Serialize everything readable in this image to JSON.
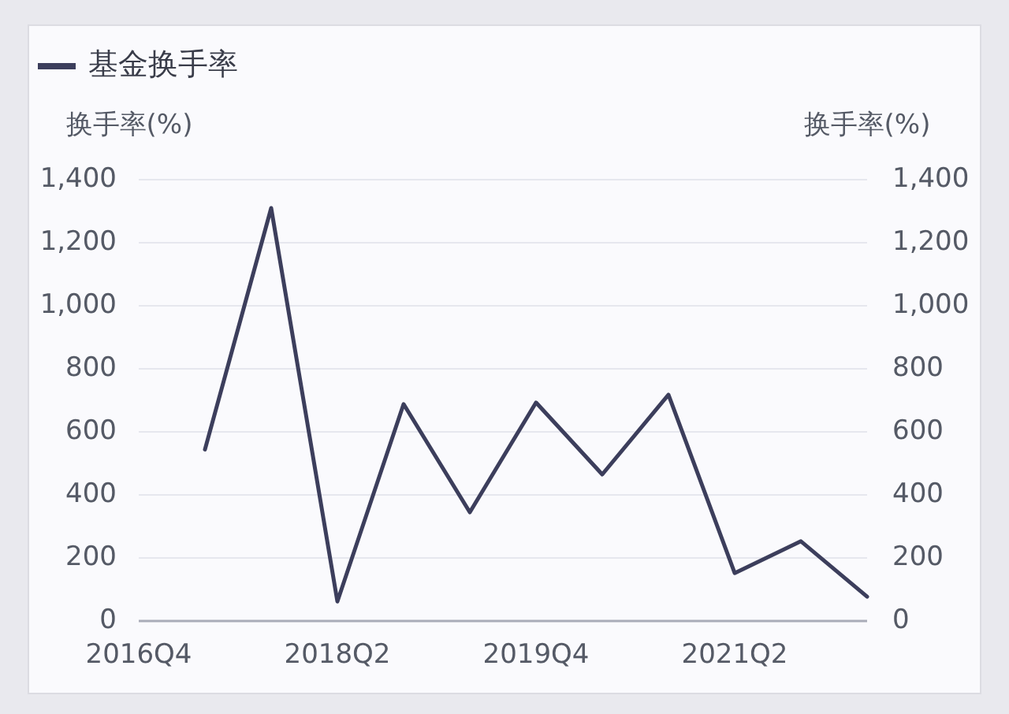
{
  "chart_data": {
    "type": "line",
    "categories": [
      "2016Q4",
      null,
      null,
      "2018Q2",
      null,
      null,
      "2019Q4",
      null,
      null,
      "2021Q2",
      null,
      null
    ],
    "series": [
      {
        "name": "基金换手率",
        "color": "#3c3e5c",
        "values": [
          null,
          544,
          1310,
          62,
          688,
          345,
          693,
          465,
          718,
          152,
          253,
          77
        ]
      }
    ],
    "ylabel": "换手率(%)",
    "y2label": "换手率(%)",
    "ylim": [
      0,
      1400
    ],
    "yticks": [
      {
        "value": 0,
        "label": "0"
      },
      {
        "value": 200,
        "label": "200"
      },
      {
        "value": 400,
        "label": "400"
      },
      {
        "value": 600,
        "label": "600"
      },
      {
        "value": 800,
        "label": "800"
      },
      {
        "value": 1000,
        "label": "1,000"
      },
      {
        "value": 1200,
        "label": "1,200"
      },
      {
        "value": 1400,
        "label": "1,400"
      }
    ],
    "y2lim": [
      0,
      1400
    ],
    "y2ticks": [
      {
        "value": 0,
        "label": "0"
      },
      {
        "value": 200,
        "label": "200"
      },
      {
        "value": 400,
        "label": "400"
      },
      {
        "value": 600,
        "label": "600"
      },
      {
        "value": 800,
        "label": "800"
      },
      {
        "value": 1000,
        "label": "1,000"
      },
      {
        "value": 1200,
        "label": "1,200"
      },
      {
        "value": 1400,
        "label": "1,400"
      }
    ],
    "grid": "y",
    "legend": "top left",
    "marker": "none",
    "line_style": "solid"
  }
}
